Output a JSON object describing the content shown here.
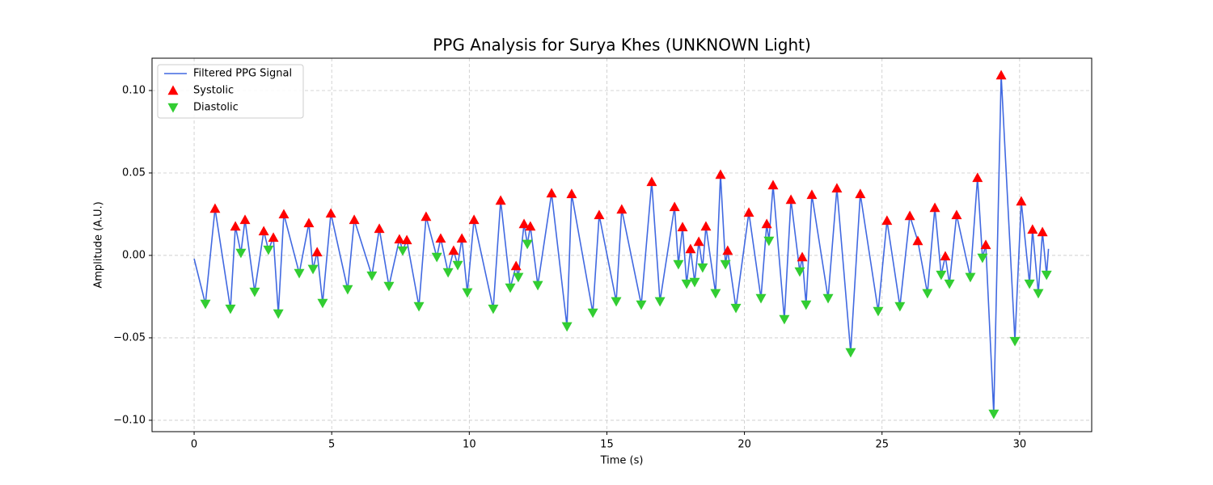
{
  "chart_data": {
    "type": "line",
    "title": "PPG Analysis for Surya Khes (UNKNOWN Light)",
    "xlabel": "Time (s)",
    "ylabel": "Amplitude (A.U.)",
    "xlim": [
      -1.53,
      32.62
    ],
    "ylim": [
      -0.1069,
      0.1196
    ],
    "xticks": [
      0,
      5,
      10,
      15,
      20,
      25,
      30
    ],
    "yticks": [
      {
        "value": -0.1,
        "label": "−0.10"
      },
      {
        "value": -0.05,
        "label": "−0.05"
      },
      {
        "value": 0,
        "label": "0.00"
      },
      {
        "value": 0.05,
        "label": "0.05"
      },
      {
        "value": 0.1,
        "label": "0.10"
      }
    ],
    "grid": true,
    "legend": "upper left",
    "series": [
      {
        "name": "Filtered PPG Signal",
        "type": "line",
        "color": "#4169e1",
        "x": [
          0,
          0.41,
          0.76,
          1.32,
          1.5,
          1.7,
          1.85,
          2.2,
          2.53,
          2.7,
          2.88,
          3.06,
          3.26,
          3.82,
          4.17,
          4.32,
          4.47,
          4.67,
          4.97,
          5.58,
          5.82,
          6.46,
          6.73,
          7.08,
          7.46,
          7.58,
          7.73,
          8.17,
          8.43,
          8.82,
          8.96,
          9.23,
          9.43,
          9.58,
          9.73,
          9.93,
          10.17,
          10.87,
          11.14,
          11.49,
          11.7,
          11.78,
          11.99,
          12.11,
          12.22,
          12.49,
          12.99,
          13.55,
          13.72,
          14.49,
          14.72,
          15.34,
          15.54,
          16.25,
          16.63,
          16.93,
          17.46,
          17.6,
          17.75,
          17.9,
          18.04,
          18.19,
          18.34,
          18.48,
          18.6,
          18.95,
          19.13,
          19.31,
          19.39,
          19.69,
          20.16,
          20.6,
          20.81,
          20.89,
          21.04,
          21.45,
          21.69,
          22.01,
          22.1,
          22.24,
          22.45,
          23.04,
          23.36,
          23.86,
          24.21,
          24.86,
          25.18,
          25.65,
          26.01,
          26.3,
          26.65,
          26.92,
          27.15,
          27.3,
          27.45,
          27.71,
          28.21,
          28.47,
          28.65,
          28.77,
          29.06,
          29.33,
          29.83,
          30.06,
          30.36,
          30.47,
          30.68,
          30.83,
          30.98,
          31.05
        ],
        "values": [
          -0.002,
          -0.0294,
          0.0284,
          -0.0324,
          0.0176,
          0.0015,
          0.0216,
          -0.0221,
          0.0147,
          0.0034,
          0.0108,
          -0.0353,
          0.025,
          -0.0108,
          0.0196,
          -0.0083,
          0.002,
          -0.0289,
          0.0255,
          -0.0206,
          0.0216,
          -0.0123,
          0.0162,
          -0.0186,
          0.0098,
          0.0029,
          0.0093,
          -0.0309,
          0.0235,
          -0.001,
          0.0103,
          -0.0103,
          0.0029,
          -0.0059,
          0.0103,
          -0.0225,
          0.0216,
          -0.0324,
          0.0333,
          -0.0196,
          -0.0064,
          -0.0132,
          0.0191,
          0.0069,
          0.0176,
          -0.0181,
          0.0377,
          -0.0431,
          0.0373,
          -0.0348,
          0.0245,
          -0.0279,
          0.0279,
          -0.0299,
          0.0446,
          -0.0279,
          0.0294,
          -0.0054,
          0.0172,
          -0.0172,
          0.0039,
          -0.0162,
          0.0083,
          -0.0074,
          0.0176,
          -0.023,
          0.049,
          -0.0054,
          0.0029,
          -0.0319,
          0.026,
          -0.026,
          0.0191,
          0.0088,
          0.0426,
          -0.0387,
          0.0338,
          -0.0098,
          -0.001,
          -0.0299,
          0.0368,
          -0.026,
          0.0407,
          -0.0588,
          0.0373,
          -0.0338,
          0.0211,
          -0.0309,
          0.024,
          0.0088,
          -0.023,
          0.0289,
          -0.0118,
          -0.0005,
          -0.0172,
          0.0245,
          -0.0132,
          0.0471,
          -0.0015,
          0.0064,
          -0.0961,
          0.1093,
          -0.052,
          0.0328,
          -0.0172,
          0.0157,
          -0.023,
          0.0142,
          -0.0118,
          0.004
        ]
      },
      {
        "name": "Systolic",
        "type": "scatter",
        "marker": "triangle-up",
        "color": "#ff0000",
        "x": [
          0.76,
          1.5,
          1.85,
          2.53,
          2.88,
          3.26,
          4.17,
          4.47,
          4.97,
          5.82,
          6.73,
          7.46,
          7.73,
          8.43,
          8.96,
          9.43,
          9.73,
          10.17,
          11.14,
          11.7,
          11.99,
          12.22,
          12.99,
          13.72,
          14.72,
          15.54,
          16.63,
          17.46,
          17.75,
          18.04,
          18.34,
          18.6,
          19.13,
          19.39,
          20.16,
          20.81,
          21.04,
          21.69,
          22.1,
          22.45,
          23.36,
          24.21,
          25.18,
          26.01,
          26.3,
          26.92,
          27.3,
          27.71,
          28.47,
          28.77,
          29.33,
          30.06,
          30.47,
          30.83
        ],
        "values": [
          0.0284,
          0.0176,
          0.0216,
          0.0147,
          0.0108,
          0.025,
          0.0196,
          0.002,
          0.0255,
          0.0216,
          0.0162,
          0.0098,
          0.0093,
          0.0235,
          0.0103,
          0.0029,
          0.0103,
          0.0216,
          0.0333,
          -0.0064,
          0.0191,
          0.0176,
          0.0377,
          0.0373,
          0.0245,
          0.0279,
          0.0446,
          0.0294,
          0.0172,
          0.0039,
          0.0083,
          0.0176,
          0.049,
          0.0029,
          0.026,
          0.0191,
          0.0426,
          0.0338,
          -0.001,
          0.0368,
          0.0407,
          0.0373,
          0.0211,
          0.024,
          0.0088,
          0.0289,
          -0.0005,
          0.0245,
          0.0471,
          0.0064,
          0.1093,
          0.0328,
          0.0157,
          0.0142
        ]
      },
      {
        "name": "Diastolic",
        "type": "scatter",
        "marker": "triangle-down",
        "color": "#32cd32",
        "x": [
          0.41,
          1.32,
          1.7,
          2.2,
          2.7,
          3.06,
          3.82,
          4.32,
          4.67,
          5.58,
          6.46,
          7.08,
          7.58,
          8.17,
          8.82,
          9.23,
          9.58,
          9.93,
          10.87,
          11.49,
          11.78,
          12.11,
          12.49,
          13.55,
          14.49,
          15.34,
          16.25,
          16.93,
          17.6,
          17.9,
          18.19,
          18.48,
          18.95,
          19.31,
          19.69,
          20.6,
          20.89,
          21.45,
          22.01,
          22.24,
          23.04,
          23.86,
          24.86,
          25.65,
          26.65,
          27.15,
          27.45,
          28.21,
          28.65,
          29.06,
          29.83,
          30.36,
          30.68,
          30.98
        ],
        "values": [
          -0.0294,
          -0.0324,
          0.0015,
          -0.0221,
          0.0034,
          -0.0353,
          -0.0108,
          -0.0083,
          -0.0289,
          -0.0206,
          -0.0123,
          -0.0186,
          0.0029,
          -0.0309,
          -0.001,
          -0.0103,
          -0.0059,
          -0.0225,
          -0.0324,
          -0.0196,
          -0.0132,
          0.0069,
          -0.0181,
          -0.0431,
          -0.0348,
          -0.0279,
          -0.0299,
          -0.0279,
          -0.0054,
          -0.0172,
          -0.0162,
          -0.0074,
          -0.023,
          -0.0054,
          -0.0319,
          -0.026,
          0.0088,
          -0.0387,
          -0.0098,
          -0.0299,
          -0.026,
          -0.0588,
          -0.0338,
          -0.0309,
          -0.023,
          -0.0118,
          -0.0172,
          -0.0132,
          -0.0015,
          -0.0961,
          -0.052,
          -0.0172,
          -0.023,
          -0.0118
        ]
      }
    ]
  }
}
